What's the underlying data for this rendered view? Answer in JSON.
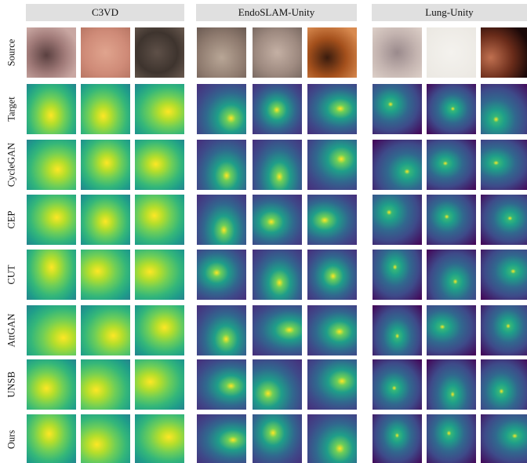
{
  "figure": {
    "column_groups": [
      "C3VD",
      "EndoSLAM-Unity",
      "Lung-Unity"
    ],
    "row_labels": [
      "Source",
      "Target",
      "CycleGAN",
      "CEP",
      "CUT",
      "AttGAN",
      "UNSB",
      "Ours"
    ]
  }
}
